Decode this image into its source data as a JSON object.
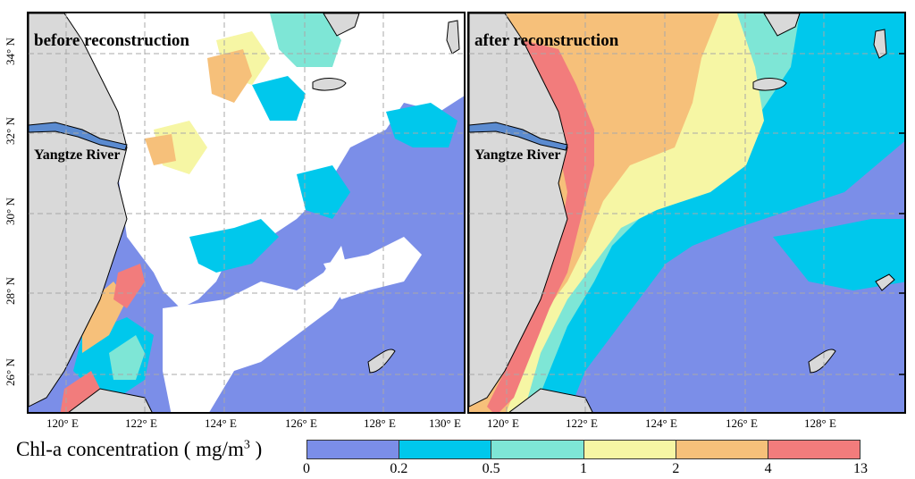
{
  "panels": {
    "left": {
      "title": "before reconstruction",
      "river_label": "Yangtze River"
    },
    "right": {
      "title": "after reconstruction",
      "river_label": "Yangtze River"
    }
  },
  "axes": {
    "lat_labels": [
      "34° N",
      "32° N",
      "30° N",
      "28° N",
      "26° N"
    ],
    "lon_labels_left": [
      "120° E",
      "122° E",
      "124° E",
      "126° E",
      "128° E",
      "130° E"
    ],
    "lon_labels_right": [
      "120° E",
      "122° E",
      "124° E",
      "126° E",
      "128° E"
    ]
  },
  "legend": {
    "title": "Chl-a concentration ( mg/m",
    "title_superscript": "3",
    "title_suffix": " )",
    "ticks": [
      "0",
      "0.2",
      "0.5",
      "1",
      "2",
      "4",
      "13"
    ],
    "colors": [
      "#7b8ee8",
      "#00c8ec",
      "#7ee6d6",
      "#f6f6a4",
      "#f6c07a",
      "#f27c7c"
    ]
  },
  "colors": {
    "land": "#d9d9d9",
    "no_data": "#ffffff",
    "grid": "#a8a8a8",
    "river": "#5b8bd0"
  }
}
